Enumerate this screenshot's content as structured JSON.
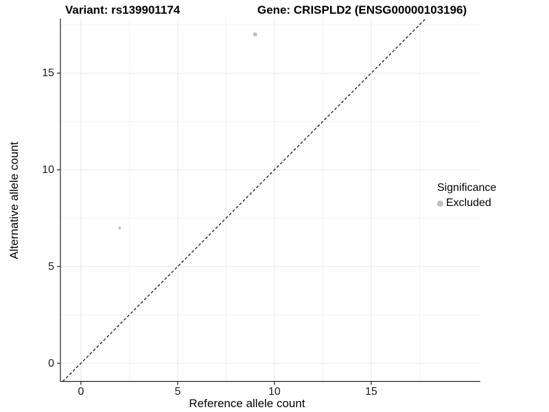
{
  "header": {
    "variant_title": "Variant: rs139901174",
    "gene_title": "Gene: CRISPLD2 (ENSG00000103196)"
  },
  "chart_data": {
    "type": "scatter",
    "title_left": "Variant: rs139901174",
    "title_right": "Gene: CRISPLD2 (ENSG00000103196)",
    "xlabel": "Reference allele count",
    "ylabel": "Alternative allele count",
    "x_ticks": [
      0,
      5,
      10,
      15
    ],
    "y_ticks": [
      0,
      5,
      10,
      15
    ],
    "x_minor_gridlines": [
      2.5,
      7.5,
      12.5,
      17.5
    ],
    "y_minor_gridlines": [
      2.5,
      7.5,
      12.5,
      17.5
    ],
    "xlim": [
      -1.06,
      20.64
    ],
    "ylim": [
      -0.94,
      17.82
    ],
    "grid": "major+minor",
    "legend_position": "right",
    "identity_line": {
      "style": "dashed",
      "from": [
        -0.94,
        -0.94
      ],
      "to": [
        17.82,
        17.82
      ]
    },
    "series": [
      {
        "name": "Excluded",
        "color": "#bebebe",
        "points": [
          {
            "x": 2,
            "y": 7,
            "r": 2
          },
          {
            "x": 9,
            "y": 17,
            "r": 3
          }
        ]
      }
    ],
    "legend": {
      "title": "Significance",
      "items": [
        {
          "label": "Excluded",
          "color": "#bebebe"
        }
      ]
    }
  },
  "colors": {
    "point": "#bebebe",
    "axis_line": "#1f1f1f",
    "tick": "#1f1f1f",
    "identity_line": "#000000",
    "grid_major": "#e7e7e7",
    "grid_minor": "#f1f1f1",
    "background": "#ffffff"
  }
}
